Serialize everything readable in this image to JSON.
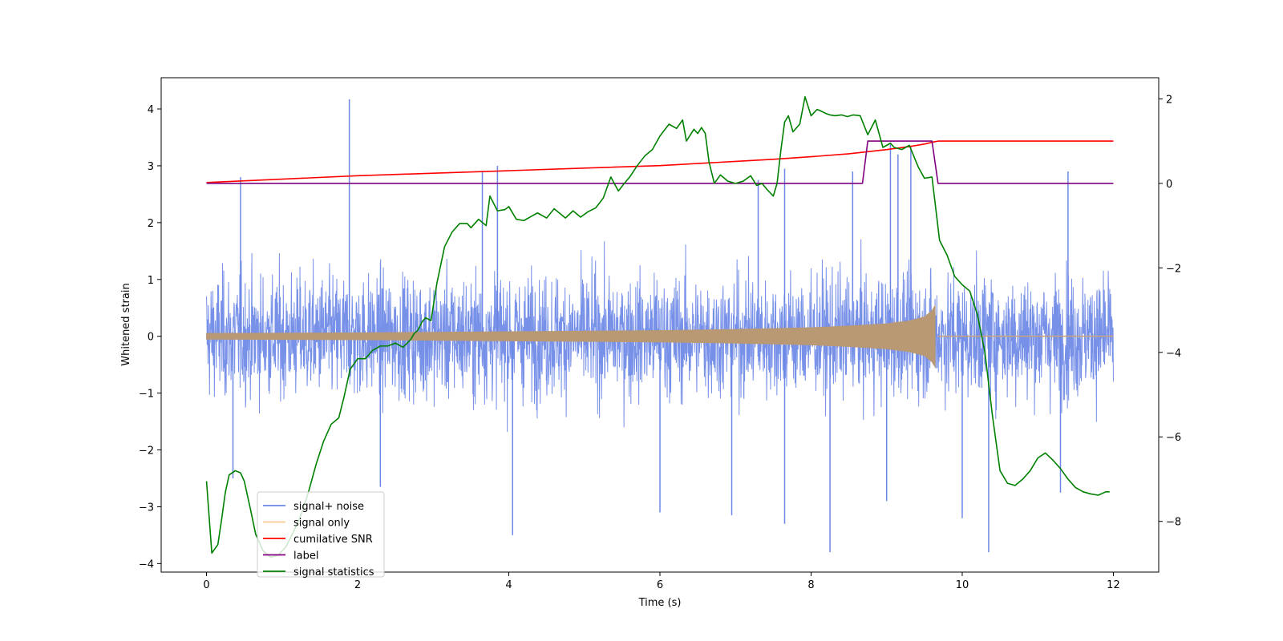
{
  "chart_data": {
    "type": "line",
    "title": "",
    "xlabel": "Time (s)",
    "ylabel": "Whitened strain",
    "y2label": "",
    "xlim": [
      -0.6,
      12.6
    ],
    "ylim": [
      -4.15,
      4.55
    ],
    "y2lim": [
      -9.2,
      2.5
    ],
    "xticks": [
      0,
      2,
      4,
      6,
      8,
      10,
      12
    ],
    "yticks": [
      -4,
      -3,
      -2,
      -1,
      0,
      1,
      2,
      3,
      4
    ],
    "y2ticks": [
      -8,
      -6,
      -4,
      -2,
      0,
      2
    ],
    "xtick_labels": [
      "0",
      "2",
      "4",
      "6",
      "8",
      "10",
      "12"
    ],
    "ytick_labels": [
      "−4",
      "−3",
      "−2",
      "−1",
      "0",
      "1",
      "2",
      "3",
      "4"
    ],
    "y2tick_labels": [
      "−8",
      "−6",
      "−4",
      "−2",
      "0",
      "2"
    ],
    "grid": false,
    "legend_position": "lower-left",
    "series": [
      {
        "name": "signal+ noise",
        "color": "#6b87e6",
        "axis": "left",
        "description": "dense noisy whitened strain, roughly within -2.5..2.5 with spikes",
        "peaks": [
          [
            1.89,
            4.17
          ],
          [
            0.45,
            2.8
          ],
          [
            3.65,
            2.9
          ],
          [
            3.85,
            3.0
          ],
          [
            7.3,
            2.75
          ],
          [
            7.65,
            2.95
          ],
          [
            8.55,
            2.9
          ],
          [
            9.05,
            3.4
          ],
          [
            9.15,
            3.2
          ],
          [
            9.32,
            3.35
          ],
          [
            11.4,
            2.9
          ]
        ],
        "troughs": [
          [
            0.35,
            -2.5
          ],
          [
            2.3,
            -2.65
          ],
          [
            4.05,
            -3.5
          ],
          [
            6.0,
            -3.1
          ],
          [
            6.95,
            -3.15
          ],
          [
            7.65,
            -3.3
          ],
          [
            8.25,
            -3.8
          ],
          [
            9.0,
            -2.9
          ],
          [
            10.0,
            -3.2
          ],
          [
            10.35,
            -3.8
          ],
          [
            11.3,
            -2.75
          ]
        ]
      },
      {
        "name": "signal only",
        "color": "#f4b565",
        "axis": "left",
        "description": "chirp signal, amplitude growing from ~0.05 at t=0 to ~0.55 at t=9.65, then zero",
        "envelope": {
          "t": [
            0,
            2,
            4,
            6,
            7,
            8,
            8.5,
            9,
            9.3,
            9.5,
            9.6,
            9.65
          ],
          "a": [
            0.05,
            0.06,
            0.08,
            0.1,
            0.12,
            0.15,
            0.18,
            0.22,
            0.27,
            0.34,
            0.45,
            0.56
          ]
        },
        "t_merge": 9.68
      },
      {
        "name": "cumilative SNR",
        "color": "#ff0000",
        "axis": "right",
        "x": [
          0,
          1,
          2,
          3,
          4,
          5,
          6,
          7,
          7.5,
          8,
          8.5,
          9,
          9.3,
          9.5,
          9.62,
          9.68,
          12
        ],
        "y": [
          0.02,
          0.1,
          0.18,
          0.24,
          0.3,
          0.36,
          0.42,
          0.52,
          0.57,
          0.63,
          0.7,
          0.8,
          0.87,
          0.93,
          0.98,
          1.0,
          1.0
        ]
      },
      {
        "name": "label",
        "color": "#800080",
        "axis": "right",
        "x": [
          0,
          8.68,
          8.75,
          9.6,
          9.68,
          12
        ],
        "y": [
          0,
          0,
          1,
          1,
          0,
          0
        ]
      },
      {
        "name": "signal statistics",
        "color": "#008000",
        "axis": "right",
        "x": [
          0,
          0.07,
          0.15,
          0.2,
          0.25,
          0.3,
          0.38,
          0.45,
          0.5,
          0.58,
          0.65,
          0.75,
          0.85,
          0.95,
          1.05,
          1.15,
          1.25,
          1.35,
          1.45,
          1.55,
          1.65,
          1.75,
          1.82,
          1.9,
          2.0,
          2.1,
          2.2,
          2.3,
          2.4,
          2.5,
          2.6,
          2.7,
          2.75,
          2.8,
          2.85,
          2.9,
          2.97,
          3.05,
          3.15,
          3.25,
          3.35,
          3.45,
          3.5,
          3.6,
          3.7,
          3.75,
          3.85,
          3.95,
          4.0,
          4.1,
          4.2,
          4.3,
          4.38,
          4.5,
          4.6,
          4.75,
          4.85,
          4.95,
          5.05,
          5.15,
          5.25,
          5.35,
          5.45,
          5.52,
          5.6,
          5.7,
          5.8,
          5.9,
          6.0,
          6.12,
          6.22,
          6.3,
          6.35,
          6.45,
          6.5,
          6.55,
          6.6,
          6.65,
          6.72,
          6.8,
          6.9,
          7.0,
          7.1,
          7.2,
          7.28,
          7.35,
          7.42,
          7.5,
          7.55,
          7.6,
          7.65,
          7.7,
          7.76,
          7.85,
          7.92,
          8.0,
          8.08,
          8.12,
          8.2,
          8.25,
          8.32,
          8.4,
          8.48,
          8.56,
          8.65,
          8.75,
          8.85,
          8.95,
          9.05,
          9.1,
          9.2,
          9.3,
          9.42,
          9.5,
          9.6,
          9.7,
          9.8,
          9.9,
          10.0,
          10.1,
          10.2,
          10.3,
          10.4,
          10.5,
          10.6,
          10.7,
          10.8,
          10.9,
          11.0,
          11.1,
          11.2,
          11.3,
          11.4,
          11.5,
          11.6,
          11.7,
          11.8,
          11.9,
          11.95
        ],
        "y": [
          -7.05,
          -8.75,
          -8.55,
          -7.95,
          -7.3,
          -6.9,
          -6.8,
          -6.85,
          -7.05,
          -7.7,
          -8.3,
          -8.7,
          -8.85,
          -8.8,
          -8.6,
          -8.25,
          -7.85,
          -7.3,
          -6.65,
          -6.1,
          -5.7,
          -5.55,
          -5.05,
          -4.4,
          -4.15,
          -4.15,
          -3.95,
          -3.85,
          -3.85,
          -3.78,
          -3.88,
          -3.7,
          -3.55,
          -3.47,
          -3.28,
          -3.18,
          -3.25,
          -2.35,
          -1.5,
          -1.15,
          -0.95,
          -0.95,
          -1.05,
          -0.85,
          -1.0,
          -0.3,
          -0.65,
          -0.62,
          -0.55,
          -0.85,
          -0.88,
          -0.78,
          -0.7,
          -0.82,
          -0.6,
          -0.82,
          -0.65,
          -0.8,
          -0.67,
          -0.58,
          -0.35,
          0.15,
          -0.18,
          -0.02,
          0.15,
          0.42,
          0.65,
          0.8,
          1.12,
          1.4,
          1.3,
          1.5,
          1.0,
          1.28,
          1.18,
          1.32,
          1.18,
          0.5,
          0.0,
          0.2,
          0.05,
          0.0,
          0.05,
          0.18,
          -0.05,
          0.0,
          -0.15,
          -0.3,
          0.0,
          0.78,
          1.45,
          1.6,
          1.22,
          1.4,
          2.05,
          1.6,
          1.75,
          1.72,
          1.65,
          1.62,
          1.6,
          1.62,
          1.58,
          1.62,
          1.6,
          1.15,
          1.5,
          0.85,
          0.95,
          0.85,
          0.8,
          0.9,
          0.38,
          0.12,
          0.15,
          -1.35,
          -1.7,
          -2.2,
          -2.4,
          -2.55,
          -3.1,
          -4.0,
          -5.5,
          -6.8,
          -7.1,
          -7.15,
          -7.0,
          -6.8,
          -6.5,
          -6.38,
          -6.55,
          -6.75,
          -7.0,
          -7.2,
          -7.3,
          -7.35,
          -7.38,
          -7.3,
          -7.3
        ]
      }
    ]
  }
}
